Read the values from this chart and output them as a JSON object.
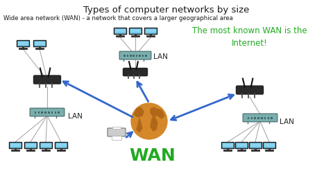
{
  "title": "Types of computer networks by size",
  "subtitle": "Wide area network (WAN) - a network that covers a larger geographical area",
  "wan_label": "WAN",
  "wan_note": "The most known WAN is the\nInternet!",
  "lan_label": "LAN",
  "bg_color": "#ffffff",
  "title_color": "#1a1a1a",
  "subtitle_color": "#1a1a1a",
  "wan_color": "#22aa22",
  "wan_note_color": "#22aa22",
  "arrow_color": "#3366cc",
  "monitor_color": "#6bbfdf",
  "monitor_frame": "#1a1a1a",
  "router_body": "#333333",
  "switch_body": "#7aafaf",
  "switch_edge": "#557777",
  "world_color": "#d4882a",
  "world_dark": "#b06818",
  "printer_color": "#cccccc",
  "wire_color": "#aaaaaa",
  "lan_text_color": "#222222"
}
